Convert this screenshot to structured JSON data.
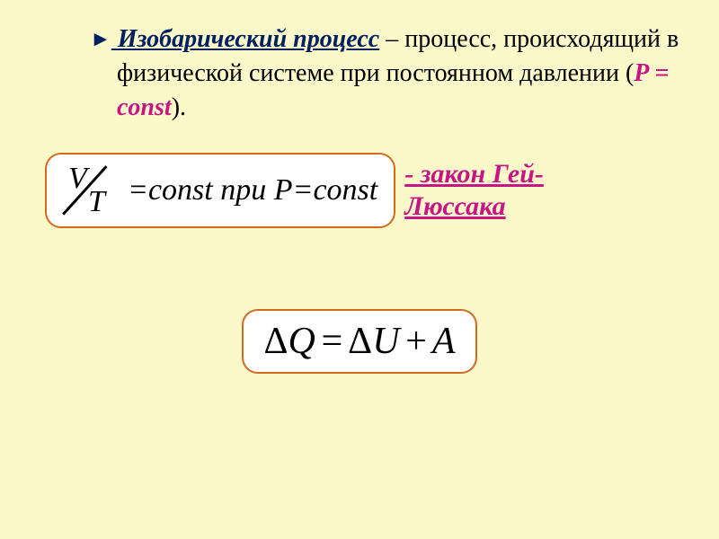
{
  "definition": {
    "triangle": "►",
    "term": " Изобарический процесс",
    "text_part1": " – процесс, происходящий в физической системе при постоянном давлении (",
    "const_expr": "P = const",
    "text_close": ")."
  },
  "formula1": {
    "V": "V",
    "T": "T",
    "eq": " =",
    "expr": " const при P ",
    "eq2": "=",
    "rhs": " const"
  },
  "law": {
    "label": "- закон Гей-Люссака"
  },
  "formula2": {
    "delta1": "Δ",
    "Q": "Q",
    "eq": " = ",
    "delta2": "Δ",
    "U": "U",
    "plus": " + ",
    "A": "A"
  },
  "styling": {
    "background": "#fbf9c9",
    "box_border": "#d2691e",
    "box_bg": "#ffffff",
    "accent_color": "#c71585",
    "term_color": "#002060",
    "font_family": "Times New Roman",
    "def_fontsize": 28,
    "formula1_fontsize": 34,
    "formula2_fontsize": 42,
    "law_fontsize": 30,
    "border_radius": 18
  }
}
